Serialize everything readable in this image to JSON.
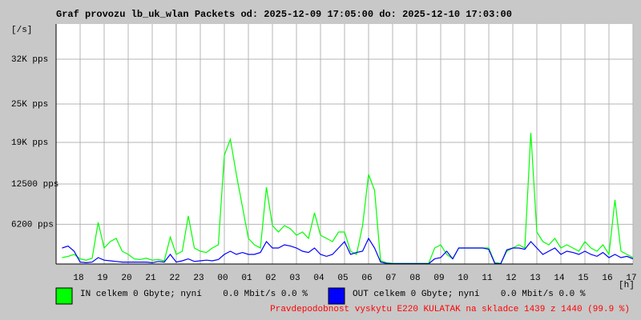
{
  "chart_data": {
    "type": "line",
    "title": "Graf provozu lb_uk_wlan Packets od: 2025-12-09 17:05:00 do: 2025-12-10 17:03:00",
    "y_label": "[/s]",
    "x_label": "[h]",
    "xlim": [
      17,
      41
    ],
    "xticks": [
      {
        "value": 18,
        "label": "18"
      },
      {
        "value": 19,
        "label": "19"
      },
      {
        "value": 20,
        "label": "20"
      },
      {
        "value": 21,
        "label": "21"
      },
      {
        "value": 22,
        "label": "22"
      },
      {
        "value": 23,
        "label": "23"
      },
      {
        "value": 24,
        "label": "00"
      },
      {
        "value": 25,
        "label": "01"
      },
      {
        "value": 26,
        "label": "02"
      },
      {
        "value": 27,
        "label": "03"
      },
      {
        "value": 28,
        "label": "04"
      },
      {
        "value": 29,
        "label": "05"
      },
      {
        "value": 30,
        "label": "06"
      },
      {
        "value": 31,
        "label": "07"
      },
      {
        "value": 32,
        "label": "08"
      },
      {
        "value": 33,
        "label": "09"
      },
      {
        "value": 34,
        "label": "10"
      },
      {
        "value": 35,
        "label": "11"
      },
      {
        "value": 36,
        "label": "12"
      },
      {
        "value": 37,
        "label": "13"
      },
      {
        "value": 38,
        "label": "14"
      },
      {
        "value": 39,
        "label": "15"
      },
      {
        "value": 40,
        "label": "16"
      },
      {
        "value": 41,
        "label": "17"
      }
    ],
    "ylim": [
      0,
      37500
    ],
    "yticks": [
      {
        "value": 6200,
        "label": "6200 pps"
      },
      {
        "value": 12500,
        "label": "12500 pps"
      },
      {
        "value": 19000,
        "label": "19K pps"
      },
      {
        "value": 25000,
        "label": "25K pps"
      },
      {
        "value": 32000,
        "label": "32K pps"
      }
    ],
    "grid": true,
    "x": [
      17.25,
      17.5,
      17.75,
      18,
      18.25,
      18.5,
      18.75,
      19,
      19.25,
      19.5,
      19.75,
      20,
      20.25,
      20.5,
      20.75,
      21,
      21.25,
      21.5,
      21.75,
      22,
      22.25,
      22.5,
      22.75,
      23,
      23.25,
      23.5,
      23.75,
      24,
      24.25,
      24.5,
      24.75,
      25,
      25.25,
      25.5,
      25.75,
      26,
      26.25,
      26.5,
      26.75,
      27,
      27.25,
      27.5,
      27.75,
      28,
      28.25,
      28.5,
      28.75,
      29,
      29.25,
      29.5,
      29.75,
      30,
      30.25,
      30.5,
      30.75,
      31,
      31.25,
      31.5,
      31.75,
      32,
      32.25,
      32.5,
      32.75,
      33,
      33.25,
      33.5,
      33.75,
      34,
      34.25,
      34.5,
      34.75,
      35,
      35.25,
      35.5,
      35.75,
      36,
      36.25,
      36.5,
      36.75,
      37,
      37.25,
      37.5,
      37.75,
      38,
      38.25,
      38.5,
      38.75,
      39,
      39.25,
      39.5,
      39.75,
      40,
      40.25,
      40.5,
      40.75,
      41
    ],
    "series": [
      {
        "name": "IN celkem 0 Gbyte; nyní    0.0 Mbit/s 0.0 %",
        "color": "#00ff00",
        "values": [
          1000,
          1200,
          1500,
          800,
          600,
          900,
          6500,
          2500,
          3500,
          4000,
          2000,
          1500,
          800,
          700,
          900,
          600,
          700,
          500,
          4200,
          1500,
          2000,
          7500,
          2500,
          2000,
          1800,
          2500,
          3000,
          17000,
          19500,
          14000,
          9000,
          4000,
          3000,
          2500,
          12000,
          6000,
          5000,
          6000,
          5500,
          4500,
          5000,
          4000,
          8000,
          4500,
          4000,
          3500,
          5000,
          5000,
          2000,
          1500,
          6000,
          14000,
          11500,
          500,
          200,
          100,
          100,
          100,
          100,
          100,
          100,
          100,
          2500,
          3000,
          1500,
          800,
          2500,
          2500,
          2500,
          2500,
          2500,
          2500,
          200,
          100,
          2000,
          2500,
          3000,
          2500,
          20500,
          5000,
          3500,
          3000,
          4000,
          2500,
          3000,
          2500,
          2000,
          3500,
          2500,
          2000,
          3000,
          1500,
          10000,
          2000,
          1500,
          1000
        ]
      },
      {
        "name": "OUT celkem 0 Gbyte; nyní    0.0 Mbit/s 0.0 %",
        "color": "#0000ff",
        "values": [
          2500,
          2800,
          2000,
          300,
          200,
          300,
          1000,
          600,
          500,
          400,
          300,
          300,
          300,
          300,
          300,
          200,
          400,
          300,
          1500,
          300,
          500,
          800,
          400,
          500,
          600,
          500,
          700,
          1500,
          2000,
          1500,
          1800,
          1500,
          1500,
          1800,
          3500,
          2500,
          2500,
          3000,
          2800,
          2500,
          2000,
          1800,
          2500,
          1500,
          1200,
          1500,
          2500,
          3500,
          1500,
          1800,
          2000,
          4000,
          2500,
          300,
          100,
          50,
          50,
          50,
          50,
          50,
          50,
          50,
          800,
          1000,
          2000,
          800,
          2500,
          2500,
          2500,
          2500,
          2500,
          2300,
          100,
          50,
          2200,
          2500,
          2500,
          2300,
          3500,
          2500,
          1500,
          2000,
          2500,
          1500,
          2000,
          1800,
          1500,
          2000,
          1500,
          1200,
          1800,
          1000,
          1500,
          1000,
          1200,
          800
        ]
      }
    ],
    "footer": "Pravdepodobnost vyskytu E220 KULATAK na skladce 1439 z 1440 (99.9 %)"
  }
}
